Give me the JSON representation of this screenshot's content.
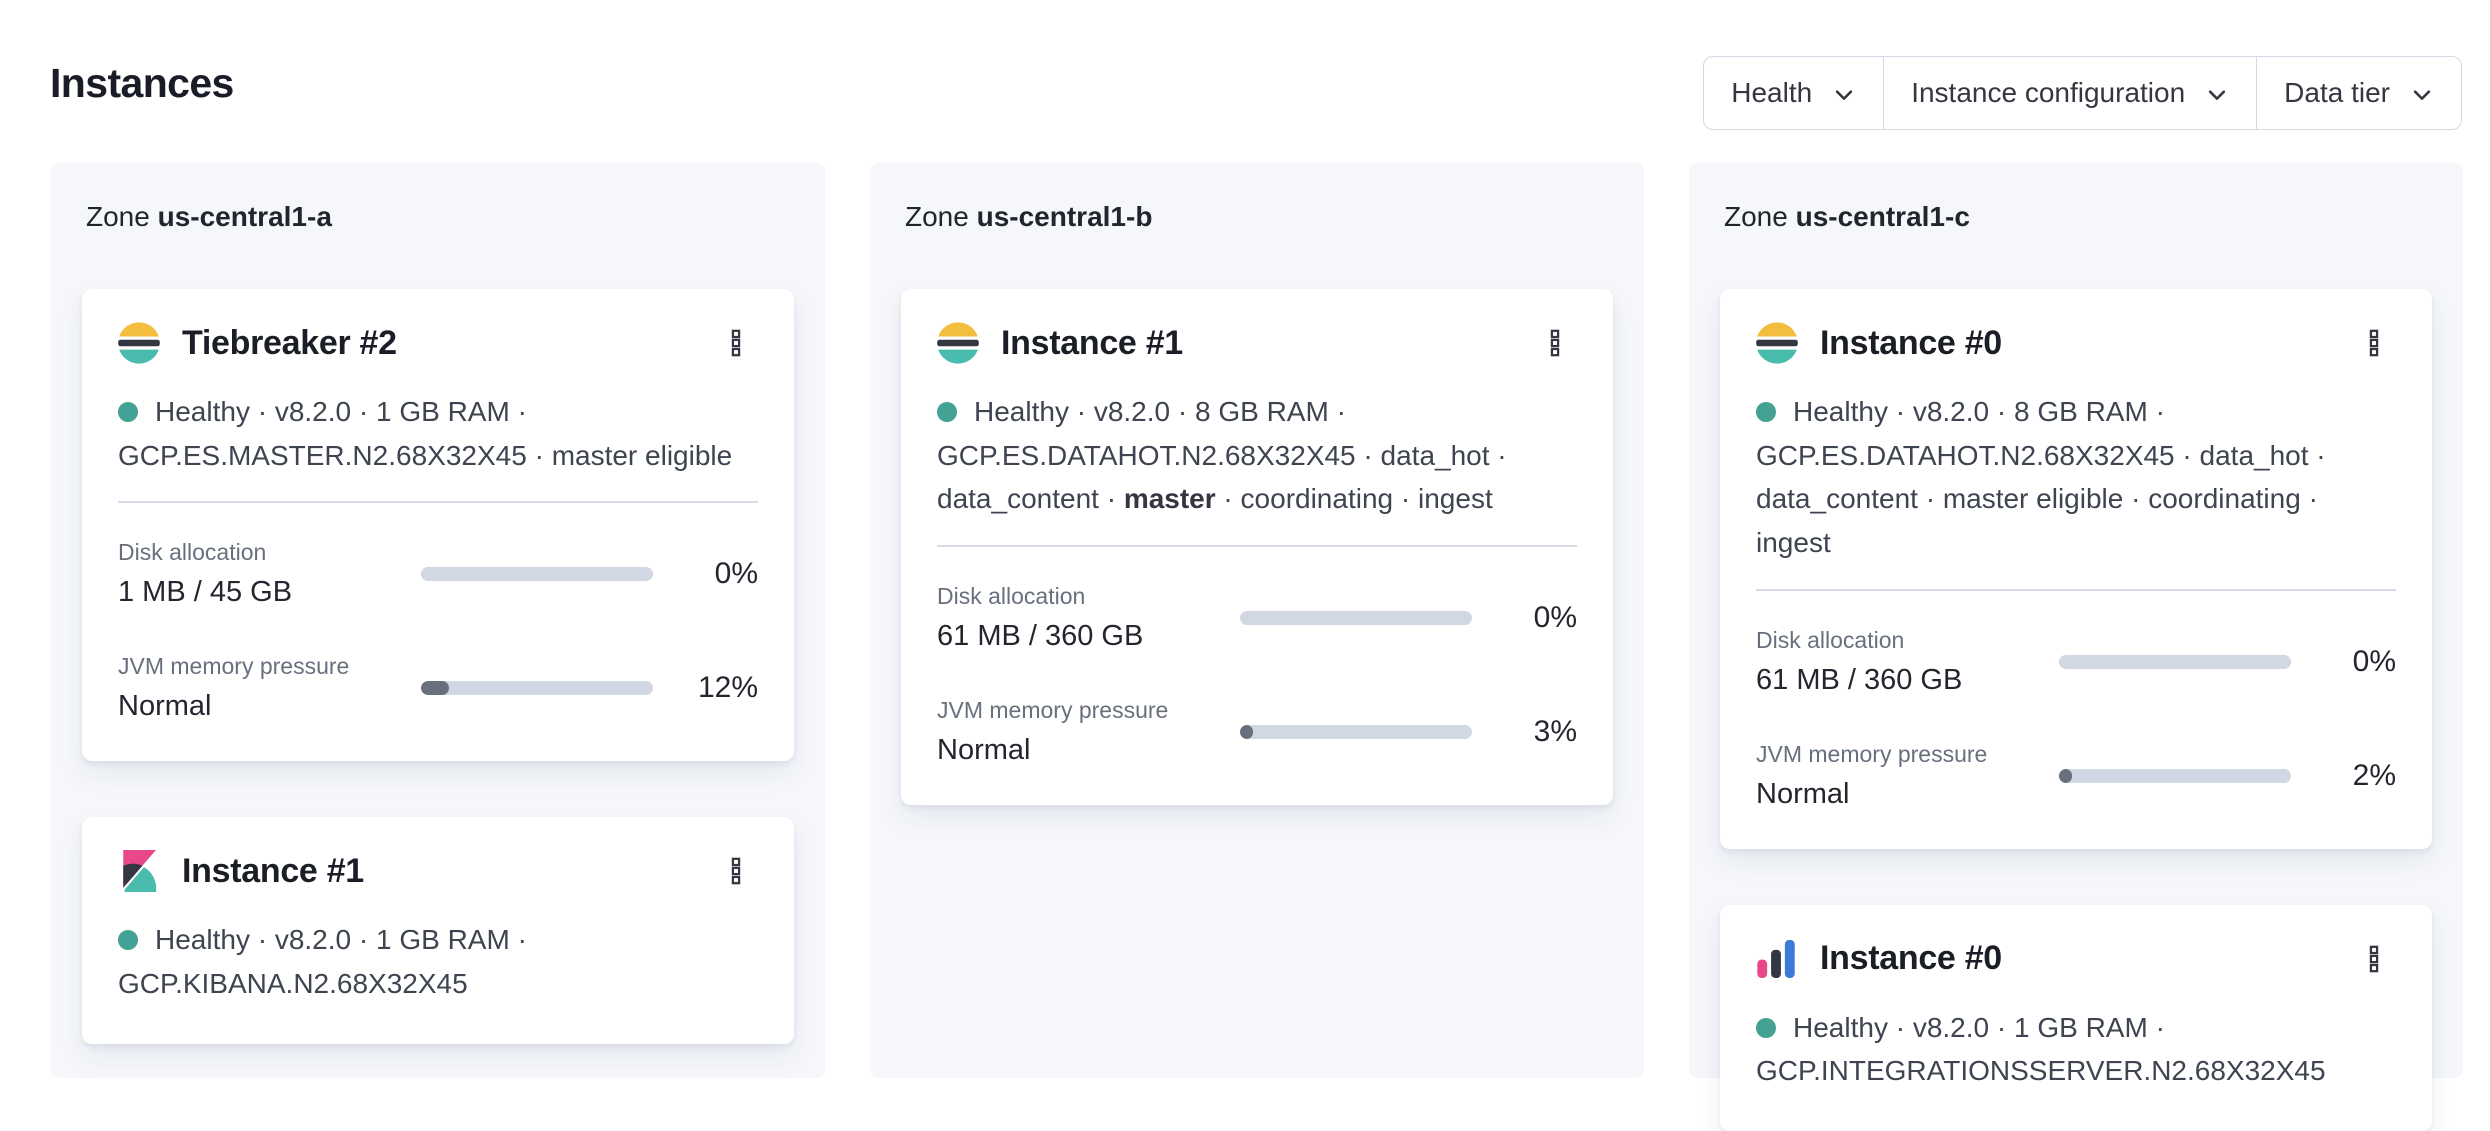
{
  "page_title": "Instances",
  "filters": [
    {
      "id": "health",
      "label": "Health"
    },
    {
      "id": "instance-configuration",
      "label": "Instance configuration"
    },
    {
      "id": "data-tier",
      "label": "Data tier"
    }
  ],
  "colors": {
    "health_dot": "#43a294",
    "progress_track": "#d2d8e3",
    "progress_fill": "#69707d",
    "panel_bg": "#f5f7fb",
    "logo_yellow": "#f3bd3d",
    "logo_dark": "#343741",
    "logo_teal": "#49bcae",
    "logo_pink": "#e8488b",
    "logo_blue": "#3b7ad9"
  },
  "zones": [
    {
      "label": "Zone",
      "name": "us-central1-a",
      "cards": [
        {
          "icon": "elasticsearch-logo",
          "title": "Tiebreaker #2",
          "meta": [
            {
              "text": "Healthy"
            },
            {
              "text": "v8.2.0"
            },
            {
              "text": "1 GB RAM"
            },
            {
              "text": "GCP.ES.MASTER.N2.68X32X45"
            },
            {
              "text": "master eligible"
            }
          ],
          "metrics": [
            {
              "label": "Disk allocation",
              "value": "1 MB / 45 GB",
              "percent": 0,
              "percent_label": "0%"
            },
            {
              "label": "JVM memory pressure",
              "value": "Normal",
              "percent": 12,
              "percent_label": "12%"
            }
          ]
        },
        {
          "icon": "kibana-logo",
          "title": "Instance #1",
          "meta": [
            {
              "text": "Healthy"
            },
            {
              "text": "v8.2.0"
            },
            {
              "text": "1 GB RAM"
            },
            {
              "text": "GCP.KIBANA.N2.68X32X45"
            }
          ],
          "metrics": []
        }
      ]
    },
    {
      "label": "Zone",
      "name": "us-central1-b",
      "cards": [
        {
          "icon": "elasticsearch-logo",
          "title": "Instance #1",
          "meta": [
            {
              "text": "Healthy"
            },
            {
              "text": "v8.2.0"
            },
            {
              "text": "8 GB RAM"
            },
            {
              "text": "GCP.ES.DATAHOT.N2.68X32X45"
            },
            {
              "text": "data_hot"
            },
            {
              "text": "data_content"
            },
            {
              "text": "master",
              "bold": true
            },
            {
              "text": "coordinating"
            },
            {
              "text": "ingest"
            }
          ],
          "metrics": [
            {
              "label": "Disk allocation",
              "value": "61 MB / 360 GB",
              "percent": 0,
              "percent_label": "0%"
            },
            {
              "label": "JVM memory pressure",
              "value": "Normal",
              "percent": 3,
              "percent_label": "3%"
            }
          ]
        }
      ]
    },
    {
      "label": "Zone",
      "name": "us-central1-c",
      "cards": [
        {
          "icon": "elasticsearch-logo",
          "title": "Instance #0",
          "meta": [
            {
              "text": "Healthy"
            },
            {
              "text": "v8.2.0"
            },
            {
              "text": "8 GB RAM"
            },
            {
              "text": "GCP.ES.DATAHOT.N2.68X32X45"
            },
            {
              "text": "data_hot"
            },
            {
              "text": "data_content"
            },
            {
              "text": "master eligible"
            },
            {
              "text": "coordinating"
            },
            {
              "text": "ingest"
            }
          ],
          "metrics": [
            {
              "label": "Disk allocation",
              "value": "61 MB / 360 GB",
              "percent": 0,
              "percent_label": "0%"
            },
            {
              "label": "JVM memory pressure",
              "value": "Normal",
              "percent": 2,
              "percent_label": "2%"
            }
          ]
        },
        {
          "icon": "integrations-server-logo",
          "title": "Instance #0",
          "meta": [
            {
              "text": "Healthy"
            },
            {
              "text": "v8.2.0"
            },
            {
              "text": "1 GB RAM"
            },
            {
              "text": "GCP.INTEGRATIONSSERVER.N2.68X32X45"
            }
          ],
          "metrics": []
        }
      ]
    }
  ]
}
